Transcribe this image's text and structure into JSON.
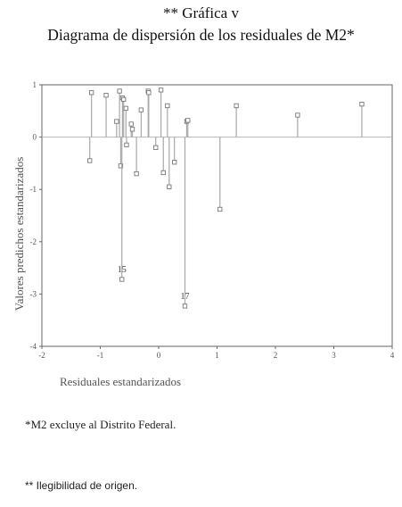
{
  "title_line1": "** Gráfica v",
  "title_line2": "Diagrama de dispersión de los residuales de M2*",
  "footnote1": "*M2 excluye al Distrito Federal.",
  "footnote2": "** Ilegibilidad de origen.",
  "chart_data": {
    "type": "scatter",
    "style": "drop-lines-to-zero",
    "xlabel": "Residuales estandarizados",
    "ylabel": "Valores predichos estandarizados",
    "xlim": [
      -2,
      4
    ],
    "ylim": [
      -4,
      1
    ],
    "xticks": [
      -2,
      -1,
      0,
      1,
      2,
      3,
      4
    ],
    "yticks": [
      1,
      0,
      -1,
      -2,
      -3,
      -4
    ],
    "grid": false,
    "reference_line_y": 0,
    "points": [
      {
        "x": -1.15,
        "y": 0.85
      },
      {
        "x": -1.18,
        "y": -0.45
      },
      {
        "x": -0.9,
        "y": 0.8
      },
      {
        "x": -0.72,
        "y": 0.3
      },
      {
        "x": -0.67,
        "y": 0.88
      },
      {
        "x": -0.65,
        "y": -0.55
      },
      {
        "x": -0.62,
        "y": 0.75
      },
      {
        "x": -0.6,
        "y": 0.72
      },
      {
        "x": -0.56,
        "y": 0.55
      },
      {
        "x": -0.55,
        "y": -0.15
      },
      {
        "x": -0.47,
        "y": 0.25
      },
      {
        "x": -0.45,
        "y": 0.15
      },
      {
        "x": -0.38,
        "y": -0.7
      },
      {
        "x": -0.3,
        "y": 0.52
      },
      {
        "x": -0.18,
        "y": 0.88
      },
      {
        "x": -0.17,
        "y": 0.85
      },
      {
        "x": -0.05,
        "y": -0.2
      },
      {
        "x": 0.04,
        "y": 0.9
      },
      {
        "x": 0.08,
        "y": -0.68
      },
      {
        "x": 0.15,
        "y": 0.6
      },
      {
        "x": 0.18,
        "y": -0.95
      },
      {
        "x": 0.27,
        "y": -0.48
      },
      {
        "x": 0.48,
        "y": 0.3
      },
      {
        "x": 0.5,
        "y": 0.32
      },
      {
        "x": 1.05,
        "y": -1.38
      },
      {
        "x": 1.33,
        "y": 0.6
      },
      {
        "x": 2.38,
        "y": 0.42
      },
      {
        "x": 3.48,
        "y": 0.63
      },
      {
        "x": -0.63,
        "y": -2.72,
        "label": "15"
      },
      {
        "x": 0.45,
        "y": -3.23,
        "label": "17"
      }
    ]
  }
}
